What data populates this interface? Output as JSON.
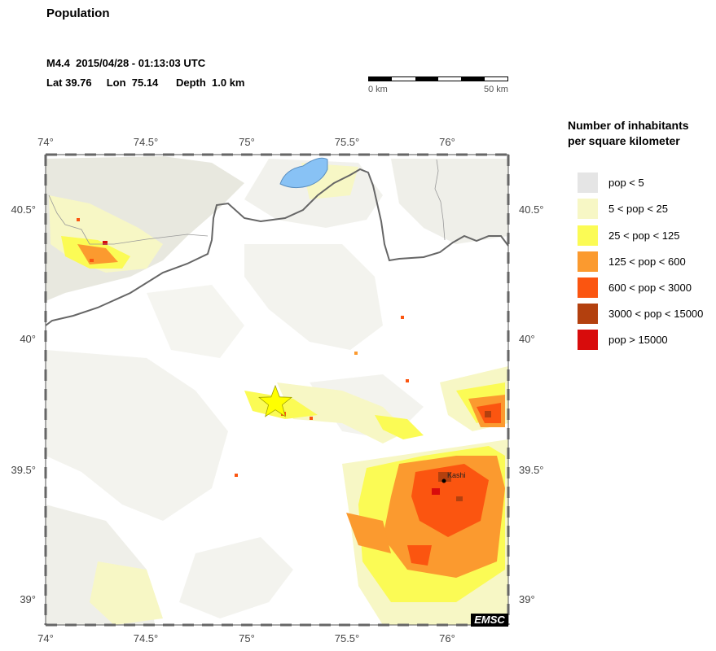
{
  "header": {
    "title": "Population",
    "event_line1": "M4.4  2015/04/28 - 01:13:03 UTC",
    "event_line2": "Lat 39.76     Lon  75.14      Depth  1.0 km"
  },
  "scale": {
    "start_label": "0 km",
    "end_label": "50 km"
  },
  "map": {
    "x_ticks": [
      "74°",
      "74.5°",
      "75°",
      "75.5°",
      "76°"
    ],
    "y_ticks": [
      "40.5°",
      "40°",
      "39.5°",
      "39°"
    ],
    "city_label": "Kashi",
    "watermark": "EMSC",
    "epicenter_icon": "star-icon",
    "epicenter_color": "#ffff00"
  },
  "legend": {
    "title_line1": "Number of inhabitants",
    "title_line2": "per square kilometer",
    "items": [
      {
        "label": "pop < 5",
        "color": "#e5e5e5"
      },
      {
        "label": "5 < pop < 25",
        "color": "#f7f7c5"
      },
      {
        "label": "25 < pop < 125",
        "color": "#fbfb55"
      },
      {
        "label": "125 < pop < 600",
        "color": "#fb9a2f"
      },
      {
        "label": "600 < pop < 3000",
        "color": "#fb5510"
      },
      {
        "label": "3000 < pop < 15000",
        "color": "#b3400e"
      },
      {
        "label": "pop > 15000",
        "color": "#d80c0c"
      }
    ]
  }
}
